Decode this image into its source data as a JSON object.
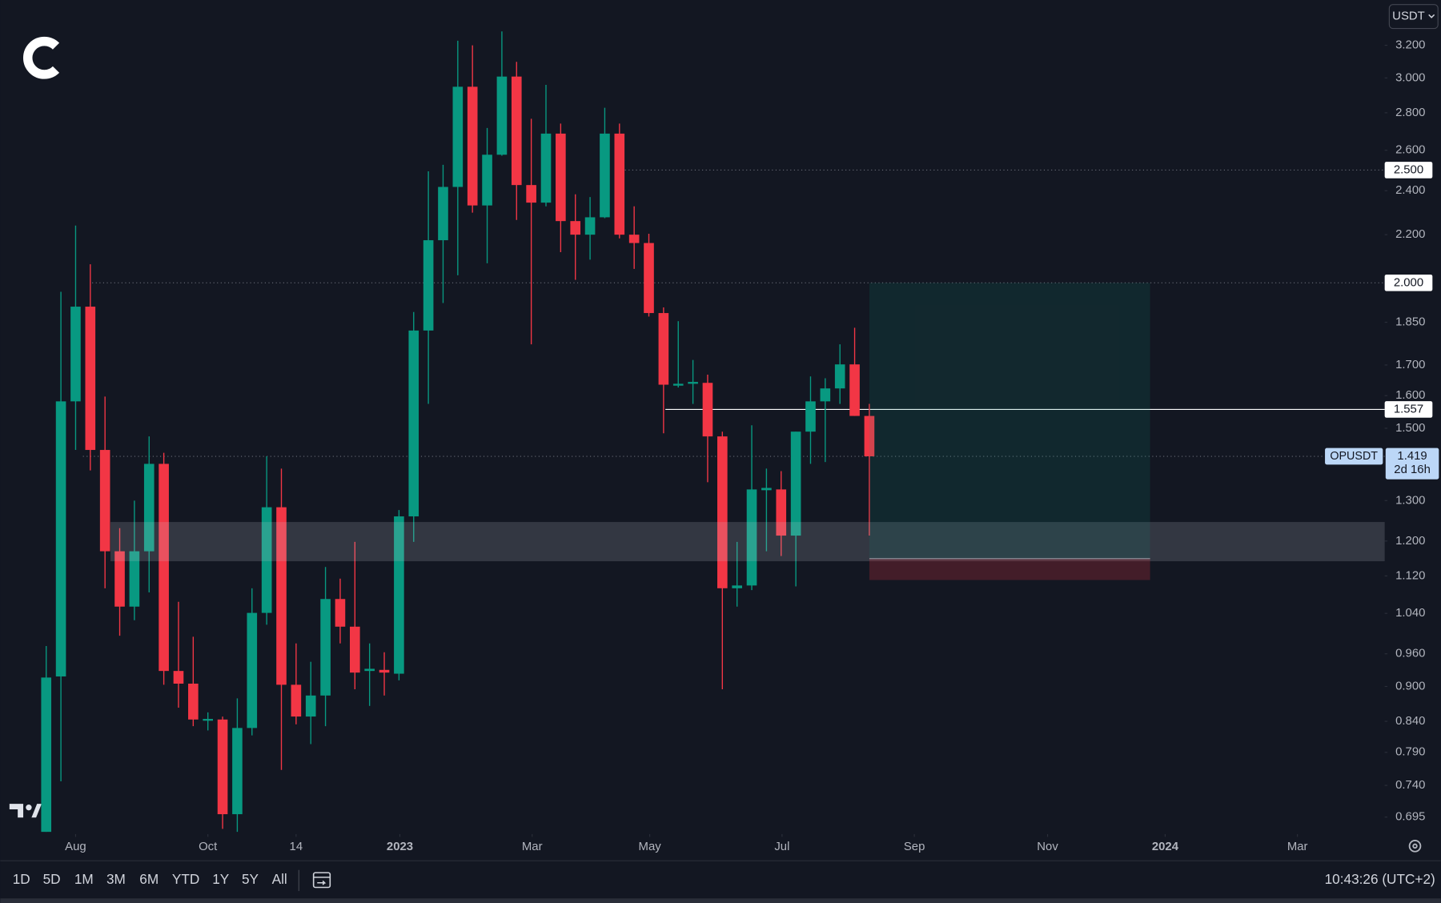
{
  "chart_data": {
    "type": "candlestick",
    "currency": "USDT",
    "log_scale": true,
    "grid": false,
    "up_color": "#089981",
    "down_color": "#f23645",
    "categories": [
      null,
      null,
      null,
      null,
      null,
      null,
      null,
      null,
      null,
      null,
      null,
      null,
      null,
      null,
      null,
      null,
      null,
      null,
      null,
      null,
      null,
      null,
      null,
      null,
      null,
      null,
      null,
      null,
      null,
      null,
      null,
      null,
      null,
      null,
      null,
      null,
      null,
      null,
      null,
      null,
      null,
      null,
      null,
      null,
      null,
      null,
      null,
      null,
      null,
      null,
      null,
      null,
      null,
      null,
      null,
      null,
      null
    ],
    "open": [
      0.675,
      0.918,
      1.582,
      1.908,
      1.437,
      1.176,
      1.054,
      1.176,
      1.398,
      0.928,
      0.905,
      0.841,
      0.843,
      0.699,
      0.829,
      1.041,
      1.283,
      0.903,
      0.848,
      0.884,
      1.07,
      1.013,
      0.928,
      0.93,
      0.923,
      1.26,
      1.82,
      2.176,
      2.418,
      2.948,
      2.331,
      2.577,
      3.008,
      2.427,
      2.344,
      2.687,
      2.26,
      2.2,
      2.277,
      2.687,
      2.2,
      2.164,
      1.884,
      1.632,
      1.638,
      1.641,
      1.476,
      1.093,
      1.099,
      1.327,
      1.329,
      1.213,
      1.49,
      1.582,
      1.623,
      1.702,
      1.537
    ],
    "high": [
      0.975,
      1.965,
      2.24,
      2.075,
      1.597,
      1.231,
      1.3,
      1.476,
      1.429,
      1.064,
      0.993,
      0.855,
      0.848,
      0.879,
      1.093,
      1.419,
      1.385,
      0.98,
      0.945,
      1.14,
      1.114,
      1.198,
      0.98,
      0.963,
      1.276,
      1.888,
      2.494,
      2.526,
      3.229,
      3.2,
      2.717,
      3.289,
      3.097,
      2.767,
      2.959,
      2.741,
      2.383,
      2.37,
      2.828,
      2.741,
      2.327,
      2.204,
      1.905,
      1.854,
      1.717,
      1.668,
      1.49,
      1.198,
      1.509,
      1.385,
      1.378,
      1.49,
      1.662,
      1.656,
      1.771,
      1.83,
      1.574
    ],
    "low": [
      0.675,
      0.746,
      1.437,
      1.38,
      1.093,
      0.995,
      1.026,
      1.084,
      0.903,
      0.863,
      0.832,
      0.825,
      0.679,
      0.675,
      0.817,
      1.017,
      0.763,
      0.835,
      0.803,
      0.832,
      0.98,
      0.895,
      0.866,
      0.884,
      0.911,
      1.198,
      1.574,
      1.922,
      2.03,
      2.298,
      2.079,
      2.572,
      2.265,
      1.771,
      2.327,
      2.125,
      2.012,
      2.094,
      2.273,
      2.184,
      2.056,
      1.871,
      1.485,
      1.626,
      1.574,
      1.348,
      0.895,
      1.054,
      1.089,
      1.176,
      1.165,
      1.097,
      1.398,
      1.403,
      1.574,
      1.537,
      1.213
    ],
    "close": [
      0.916,
      1.582,
      1.908,
      1.437,
      1.176,
      1.054,
      1.176,
      1.398,
      0.928,
      0.905,
      0.843,
      0.844,
      0.699,
      0.829,
      1.041,
      1.283,
      0.903,
      0.848,
      0.884,
      1.07,
      1.013,
      0.925,
      0.932,
      0.925,
      1.26,
      1.82,
      2.176,
      2.418,
      2.948,
      2.331,
      2.577,
      3.008,
      2.427,
      2.344,
      2.687,
      2.26,
      2.2,
      2.277,
      2.687,
      2.2,
      2.164,
      1.884,
      1.635,
      1.638,
      1.644,
      1.476,
      1.093,
      1.099,
      1.329,
      1.333,
      1.213,
      1.49,
      1.582,
      1.623,
      1.702,
      1.537,
      1.419
    ],
    "xlim": [
      -3.125,
      91.06
    ],
    "xticks": [
      {
        "value": 2,
        "label": "Aug"
      },
      {
        "value": 11,
        "label": "Oct"
      },
      {
        "value": 17,
        "label": "14"
      },
      {
        "value": 24.06,
        "label": "2023"
      },
      {
        "value": 33.06,
        "label": "Mar"
      },
      {
        "value": 41.06,
        "label": "May"
      },
      {
        "value": 50.06,
        "label": "Jul"
      },
      {
        "value": 59.06,
        "label": "Sep"
      },
      {
        "value": 68.125,
        "label": "Nov"
      },
      {
        "value": 76.125,
        "label": "2024"
      },
      {
        "value": 85.125,
        "label": "Mar"
      }
    ],
    "ylim": [
      0.672,
      3.5
    ],
    "yticks": [
      {
        "value": 3.2,
        "label": "3.200"
      },
      {
        "value": 3.0,
        "label": "3.000"
      },
      {
        "value": 2.8,
        "label": "2.800"
      },
      {
        "value": 2.6,
        "label": "2.600"
      },
      {
        "value": 2.4,
        "label": "2.400"
      },
      {
        "value": 2.2,
        "label": "2.200"
      },
      {
        "value": 1.85,
        "label": "1.850"
      },
      {
        "value": 1.7,
        "label": "1.700"
      },
      {
        "value": 1.6,
        "label": "1.600"
      },
      {
        "value": 1.5,
        "label": "1.500"
      },
      {
        "value": 1.3,
        "label": "1.300"
      },
      {
        "value": 1.2,
        "label": "1.200"
      },
      {
        "value": 1.12,
        "label": "1.120"
      },
      {
        "value": 1.04,
        "label": "1.040"
      },
      {
        "value": 0.96,
        "label": "0.960"
      },
      {
        "value": 0.9,
        "label": "0.900"
      },
      {
        "value": 0.84,
        "label": "0.840"
      },
      {
        "value": 0.79,
        "label": "0.790"
      },
      {
        "value": 0.74,
        "label": "0.740"
      },
      {
        "value": 0.695,
        "label": "0.695"
      }
    ],
    "price_lines": [
      {
        "value": 2.5,
        "label": "2.500",
        "style": "dotted"
      },
      {
        "value": 2.0,
        "label": "2.000",
        "style": "dotted"
      },
      {
        "value": 1.557,
        "label": "1.557",
        "style": "solid"
      }
    ],
    "last_price": {
      "symbol": "OPUSDT",
      "value": 1.419,
      "label": "1.419",
      "countdown": "2d 16h"
    },
    "zone": {
      "low": 1.153,
      "high": 1.246
    },
    "position": {
      "target": 2.0,
      "entry": 1.159,
      "stop": 1.111
    },
    "toolbar": {
      "ranges": [
        "1D",
        "5D",
        "1M",
        "3M",
        "6M",
        "YTD",
        "1Y",
        "5Y",
        "All"
      ],
      "time": "10:43:26 (UTC+2)"
    }
  }
}
